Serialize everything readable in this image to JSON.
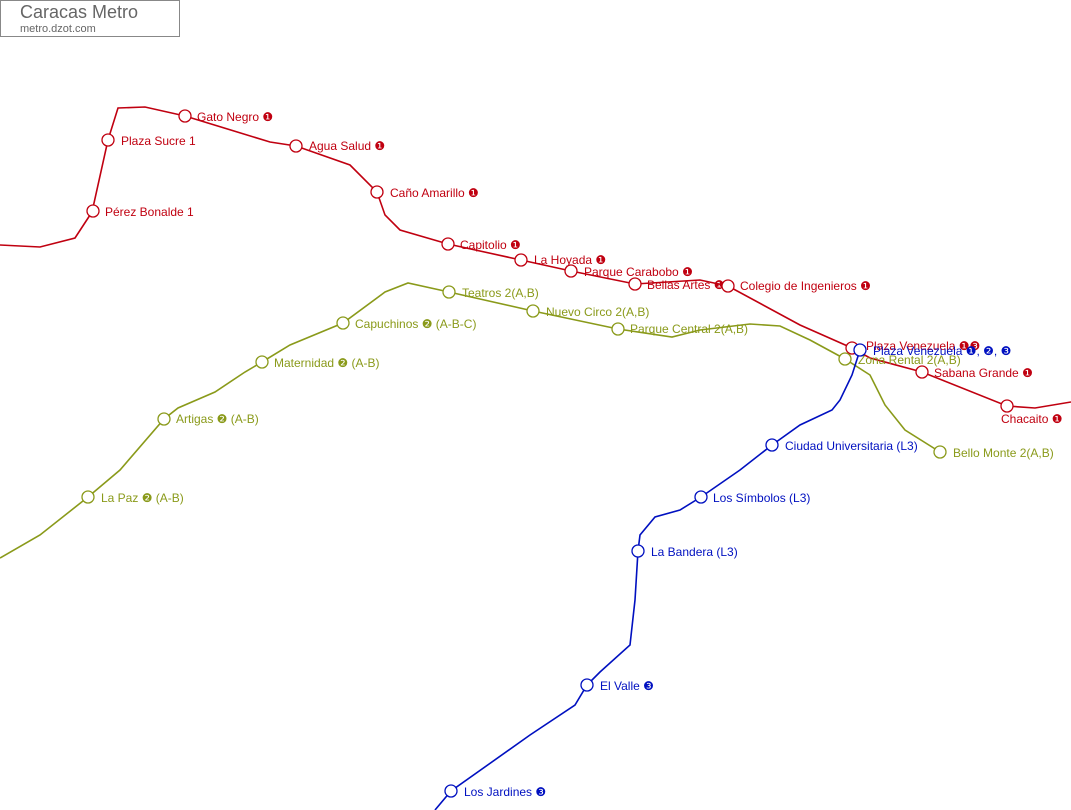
{
  "header": {
    "title": "Caracas Metro",
    "subtitle": "metro.dzot.com"
  },
  "lines": [
    {
      "stations": [
        {
          "label": "Gato Negro ❶"
        },
        {
          "label": "Plaza Sucre 1"
        },
        {
          "label": "Pérez Bonalde 1"
        },
        {
          "label": "Agua Salud ❶"
        },
        {
          "label": "Caño Amarillo ❶"
        },
        {
          "label": "Capitolio ❶"
        },
        {
          "label": "La Hoyada ❶"
        },
        {
          "label": "Parque Carabobo ❶"
        },
        {
          "label": "Bellas Artes ❶"
        },
        {
          "label": "Colegio de Ingenieros ❶"
        },
        {
          "label": "Plaza Venezuela ❶❸"
        },
        {
          "label": "Sabana Grande ❶"
        },
        {
          "label": "Chacaito ❶"
        }
      ]
    },
    {
      "stations": [
        {
          "label": "Teatros 2(A,B)"
        },
        {
          "label": "Nuevo Circo 2(A,B)"
        },
        {
          "label": "Parque Central 2(A,B)"
        },
        {
          "label": "Capuchinos ❷ (A-B-C)"
        },
        {
          "label": "Maternidad ❷ (A-B)"
        },
        {
          "label": "Artigas ❷ (A-B)"
        },
        {
          "label": "La Paz ❷ (A-B)"
        },
        {
          "label": "Zona Rental 2(A,B)"
        },
        {
          "label": "Bello Monte 2(A,B)"
        }
      ]
    },
    {
      "stations": [
        {
          "label": "Plaza Venezuela ❶, ❷, ❸"
        },
        {
          "label": "Ciudad Universitaria (L3)"
        },
        {
          "label": "Los Símbolos (L3)"
        },
        {
          "label": "La Bandera (L3)"
        },
        {
          "label": "El Valle ❸"
        },
        {
          "label": "Los Jardines ❸"
        }
      ]
    }
  ]
}
